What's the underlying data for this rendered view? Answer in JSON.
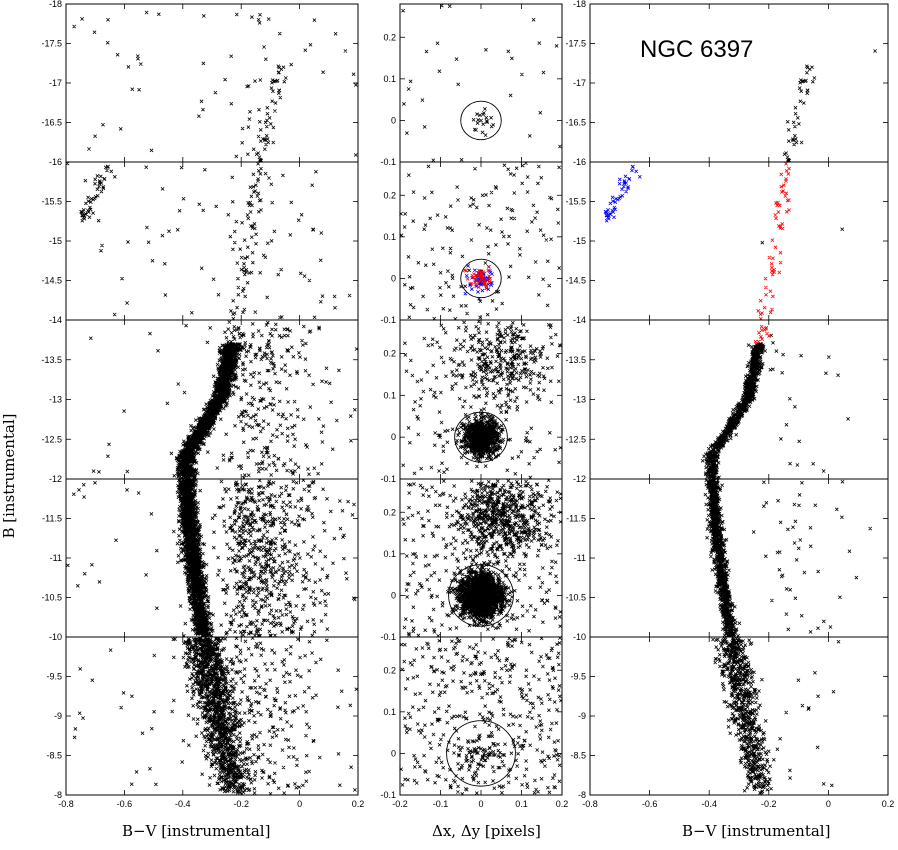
{
  "chart_data": {
    "type": "scatter",
    "title": "NGC 6397",
    "ylabel": "B [instrumental]",
    "grid": false,
    "columns": [
      {
        "id": "cmd-left",
        "xlabel": "B−V [instrumental]",
        "xlim": [
          -0.8,
          0.2
        ],
        "x_ticks": [
          "-0.8",
          "-0.6",
          "-0.4",
          "-0.2",
          "0",
          "0.2"
        ],
        "x_tick_values": [
          -0.8,
          -0.6,
          -0.4,
          -0.2,
          0,
          0.2
        ]
      },
      {
        "id": "offsets",
        "xlabel": "Δx, Δy [pixels]",
        "xlim": [
          -0.2,
          0.2
        ],
        "x_ticks": [
          "-0.2",
          "-0.1",
          "0",
          "0.1",
          "0.2"
        ],
        "x_tick_values": [
          -0.2,
          -0.1,
          0,
          0.1,
          0.2
        ],
        "ylim": [
          -0.1,
          0.28
        ],
        "y_ticks": [
          "-0.1",
          "0",
          "0.1",
          "0.2"
        ],
        "y_tick_values": [
          -0.1,
          0,
          0.1,
          0.2
        ]
      },
      {
        "id": "cmd-right",
        "xlabel": "B−V [instrumental]",
        "xlim": [
          -0.8,
          0.2
        ],
        "x_ticks": [
          "-0.8",
          "-0.6",
          "-0.4",
          "-0.2",
          "0",
          "0.2"
        ],
        "x_tick_values": [
          -0.8,
          -0.6,
          -0.4,
          -0.2,
          0,
          0.2
        ]
      }
    ],
    "rows": [
      {
        "ylim": [
          -16,
          -18
        ],
        "y_ticks": [
          "-18",
          "-17.5",
          "-17",
          "-16.5",
          "-16"
        ],
        "y_tick_values": [
          -18,
          -17.5,
          -17,
          -16.5,
          -16
        ],
        "circle_radius": 0.05
      },
      {
        "ylim": [
          -14,
          -16
        ],
        "y_ticks": [
          "-16",
          "-15.5",
          "-15",
          "-14.5",
          "-14"
        ],
        "y_tick_values": [
          -16,
          -15.5,
          -15,
          -14.5,
          -14
        ],
        "circle_radius": 0.05
      },
      {
        "ylim": [
          -12,
          -14
        ],
        "y_ticks": [
          "-14",
          "-13.5",
          "-13",
          "-12.5",
          "-12"
        ],
        "y_tick_values": [
          -14,
          -13.5,
          -13,
          -12.5,
          -12
        ],
        "circle_radius": 0.065
      },
      {
        "ylim": [
          -10,
          -12
        ],
        "y_ticks": [
          "-12",
          "-11.5",
          "-11",
          "-10.5",
          "-10"
        ],
        "y_tick_values": [
          -12,
          -11.5,
          -11,
          -10.5,
          -10
        ],
        "circle_radius": 0.08
      },
      {
        "ylim": [
          -8,
          -10
        ],
        "y_ticks": [
          "-10",
          "-9.5",
          "-9",
          "-8.5",
          "-8"
        ],
        "y_tick_values": [
          -10,
          -9.5,
          -9,
          -8.5,
          -8
        ],
        "circle_radius": 0.085
      }
    ],
    "series": [
      {
        "color": "#000000",
        "marker": "x"
      },
      {
        "color": "#0000ff",
        "marker": "x"
      },
      {
        "color": "#ff0000",
        "marker": "x"
      }
    ]
  }
}
